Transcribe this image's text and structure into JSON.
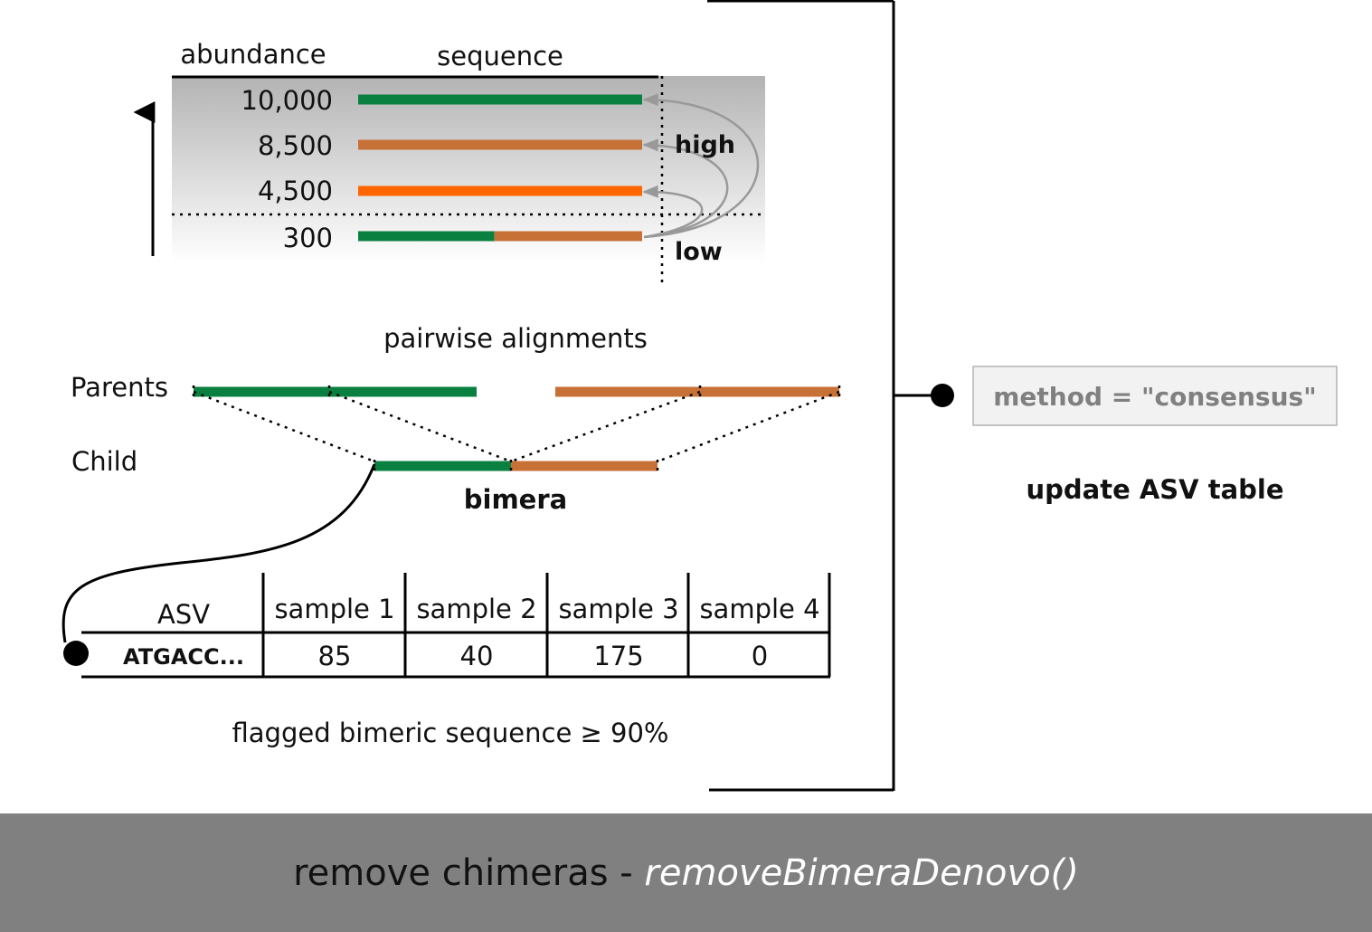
{
  "abundance_panel": {
    "col_abundance": "abundance",
    "col_sequence": "sequence",
    "rows": [
      {
        "abundance": "10,000",
        "segments": [
          {
            "color": "#0a8040",
            "fraction": 1.0
          }
        ]
      },
      {
        "abundance": "8,500",
        "segments": [
          {
            "color": "#c87137",
            "fraction": 1.0
          }
        ]
      },
      {
        "abundance": "4,500",
        "segments": [
          {
            "color": "#ff6600",
            "fraction": 1.0
          }
        ]
      },
      {
        "abundance": "300",
        "segments": [
          {
            "color": "#0a8040",
            "fraction": 0.48
          },
          {
            "color": "#c87137",
            "fraction": 0.52
          }
        ]
      }
    ],
    "label_high": "high",
    "label_low": "low"
  },
  "alignment_panel": {
    "title": "pairwise alignments",
    "parents_label": "Parents",
    "child_label": "Child",
    "child_name": "bimera",
    "colors": {
      "parent_a": "#0a8040",
      "parent_b": "#c87137"
    }
  },
  "asv_table": {
    "columns": [
      "ASV",
      "sample 1",
      "sample 2",
      "sample 3",
      "sample 4"
    ],
    "rows": [
      {
        "asv": "ATGACC...",
        "counts": [
          "85",
          "40",
          "175",
          "0"
        ]
      }
    ],
    "caption": "flagged bimeric sequence ≥ 90%"
  },
  "side_panel": {
    "method_label": "method = \"consensus\"",
    "update_label": "update ASV table"
  },
  "footer": {
    "title": "remove chimeras - ",
    "function_name": "removeBimeraDenovo()"
  }
}
